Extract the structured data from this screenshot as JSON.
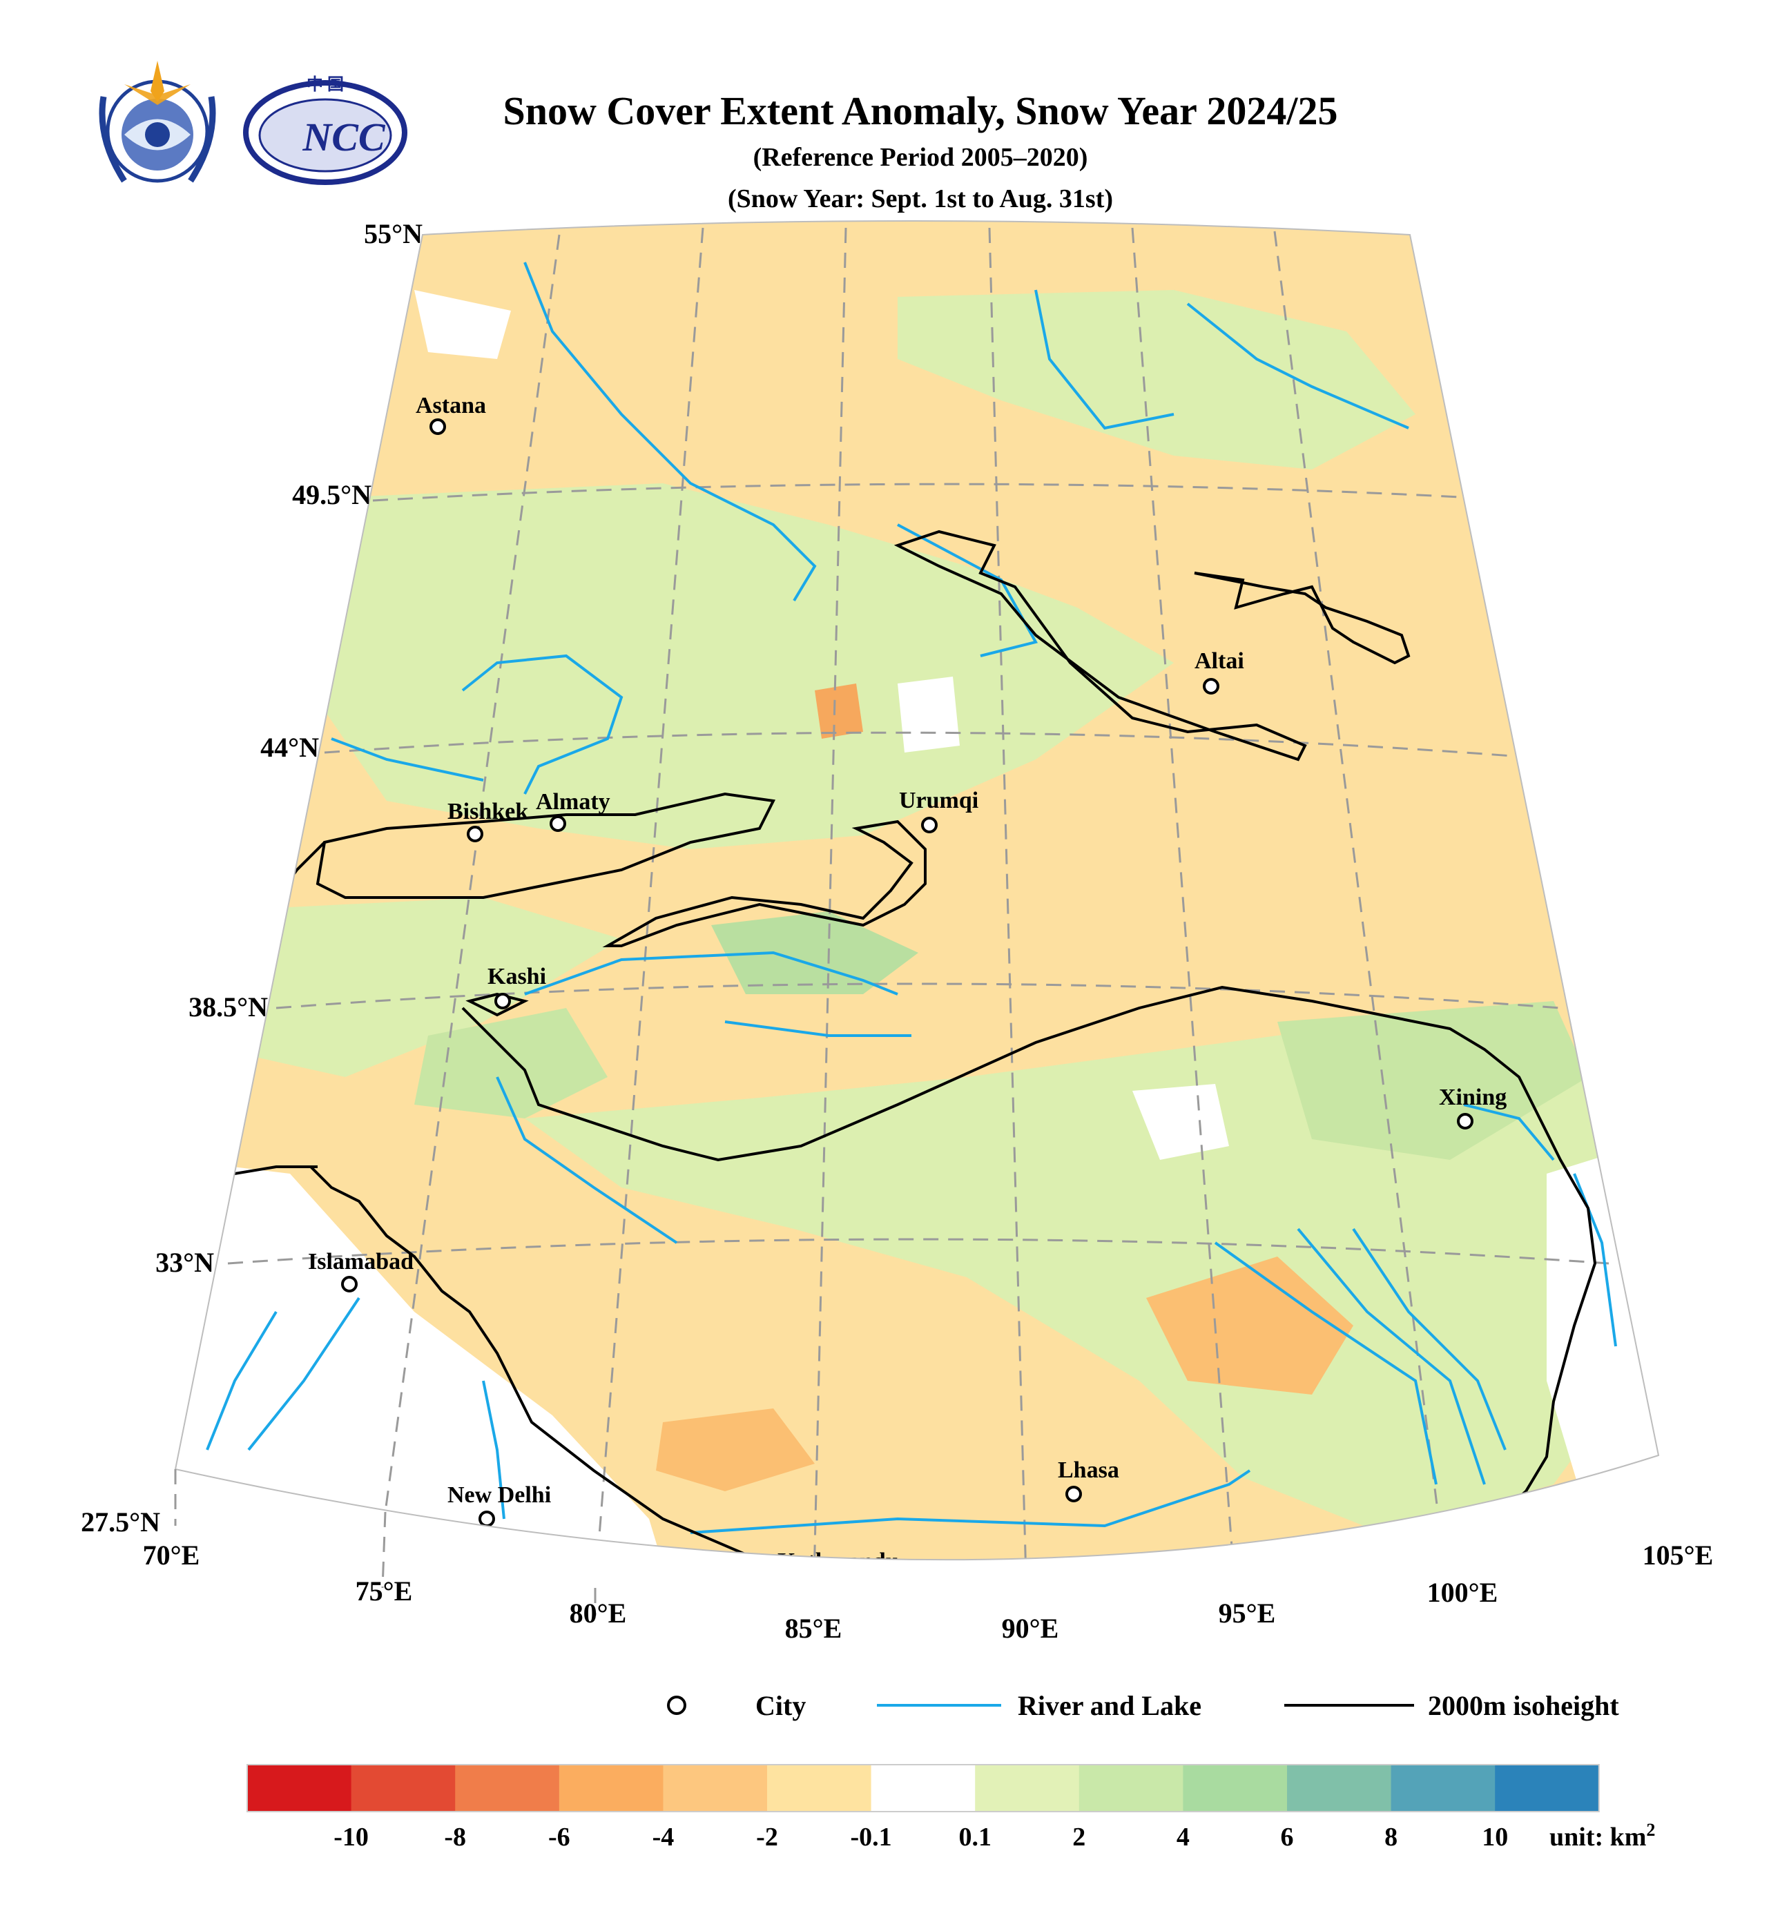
{
  "title": "Snow Cover Extent Anomaly, Snow Year 2024/25",
  "subtitle1": "(Reference Period 2005–2020)",
  "subtitle2": "(Snow Year: Sept. 1st to Aug. 31st)",
  "logos": [
    {
      "name": "wmo-emblem",
      "description": "WMO"
    },
    {
      "name": "ncc-emblem",
      "text": "NCC",
      "top_text": "中  国"
    }
  ],
  "map": {
    "lat_labels": [
      "55°N",
      "49.5°N",
      "44°N",
      "38.5°N",
      "33°N",
      "27.5°N"
    ],
    "lon_labels": [
      "70°E",
      "75°E",
      "80°E",
      "85°E",
      "90°E",
      "95°E",
      "100°E",
      "105°E"
    ],
    "cities": [
      "Astana",
      "Bishkek",
      "Almaty",
      "Urumqi",
      "Altai",
      "Kashi",
      "Xining",
      "Islamabad",
      "New Delhi",
      "Kathmandu",
      "Lhasa"
    ]
  },
  "legend": {
    "city": "City",
    "river": "River and Lake",
    "isoheight": "2000m isoheight",
    "river_color": "#1aa8e8",
    "isoheight_color": "#000000"
  },
  "colorbar": {
    "colors": [
      "#d7191c",
      "#e34a33",
      "#f07d4a",
      "#fbad5f",
      "#fdc77f",
      "#fee3a0",
      "#ffffff",
      "#e2f1b7",
      "#c9e8a9",
      "#a9dba0",
      "#80c0a9",
      "#54a3b8",
      "#2b83ba"
    ],
    "ticks": [
      "-10",
      "-8",
      "-6",
      "-4",
      "-2",
      "-0.1",
      "0.1",
      "2",
      "4",
      "6",
      "8",
      "10"
    ],
    "unit": "unit: km",
    "unit_sup": "2"
  }
}
